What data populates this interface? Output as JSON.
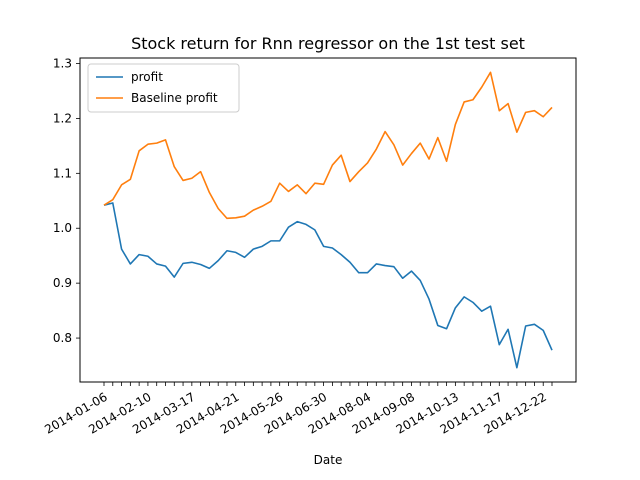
{
  "chart_data": {
    "type": "line",
    "title": "Stock return for Rnn regressor on the 1st test set",
    "xlabel": "Date",
    "ylabel": "",
    "x": [
      "2014-01-06",
      "2014-01-13",
      "2014-01-20",
      "2014-01-27",
      "2014-02-03",
      "2014-02-10",
      "2014-02-17",
      "2014-02-24",
      "2014-03-03",
      "2014-03-10",
      "2014-03-17",
      "2014-03-24",
      "2014-03-31",
      "2014-04-07",
      "2014-04-14",
      "2014-04-21",
      "2014-04-28",
      "2014-05-05",
      "2014-05-12",
      "2014-05-19",
      "2014-05-26",
      "2014-06-02",
      "2014-06-09",
      "2014-06-16",
      "2014-06-23",
      "2014-06-30",
      "2014-07-07",
      "2014-07-14",
      "2014-07-21",
      "2014-07-28",
      "2014-08-04",
      "2014-08-11",
      "2014-08-18",
      "2014-08-25",
      "2014-09-01",
      "2014-09-08",
      "2014-09-15",
      "2014-09-22",
      "2014-09-29",
      "2014-10-06",
      "2014-10-13",
      "2014-10-20",
      "2014-10-27",
      "2014-11-03",
      "2014-11-10",
      "2014-11-17",
      "2014-11-24",
      "2014-12-01",
      "2014-12-08",
      "2014-12-15",
      "2014-12-22",
      "2014-12-29"
    ],
    "x_ticks": [
      "2014-01-06",
      "2014-02-10",
      "2014-03-17",
      "2014-04-21",
      "2014-05-26",
      "2014-06-30",
      "2014-08-04",
      "2014-09-08",
      "2014-10-13",
      "2014-11-17",
      "2014-12-22"
    ],
    "y_ticks": [
      0.8,
      0.9,
      1.0,
      1.1,
      1.2,
      1.3
    ],
    "ylim": [
      0.72,
      1.31
    ],
    "legend_position": "top-left",
    "grid": false,
    "series": [
      {
        "name": "profit",
        "color": "#1f77b4",
        "values": [
          1.042,
          1.046,
          0.962,
          0.935,
          0.952,
          0.949,
          0.935,
          0.931,
          0.911,
          0.936,
          0.938,
          0.934,
          0.927,
          0.941,
          0.959,
          0.956,
          0.947,
          0.962,
          0.967,
          0.977,
          0.977,
          1.002,
          1.012,
          1.007,
          0.997,
          0.967,
          0.964,
          0.952,
          0.938,
          0.919,
          0.919,
          0.935,
          0.932,
          0.93,
          0.909,
          0.922,
          0.905,
          0.871,
          0.823,
          0.817,
          0.855,
          0.875,
          0.865,
          0.849,
          0.858,
          0.788,
          0.816,
          0.746,
          0.822,
          0.825,
          0.814,
          0.778
        ]
      },
      {
        "name": "Baseline profit",
        "color": "#ff7f0e",
        "values": [
          1.042,
          1.052,
          1.079,
          1.089,
          1.141,
          1.153,
          1.155,
          1.161,
          1.112,
          1.087,
          1.091,
          1.103,
          1.065,
          1.036,
          1.018,
          1.019,
          1.022,
          1.033,
          1.04,
          1.049,
          1.082,
          1.067,
          1.079,
          1.063,
          1.082,
          1.08,
          1.115,
          1.133,
          1.085,
          1.103,
          1.119,
          1.144,
          1.176,
          1.152,
          1.115,
          1.136,
          1.155,
          1.126,
          1.165,
          1.122,
          1.189,
          1.23,
          1.234,
          1.257,
          1.284,
          1.214,
          1.227,
          1.175,
          1.211,
          1.214,
          1.203,
          1.22
        ]
      }
    ]
  }
}
